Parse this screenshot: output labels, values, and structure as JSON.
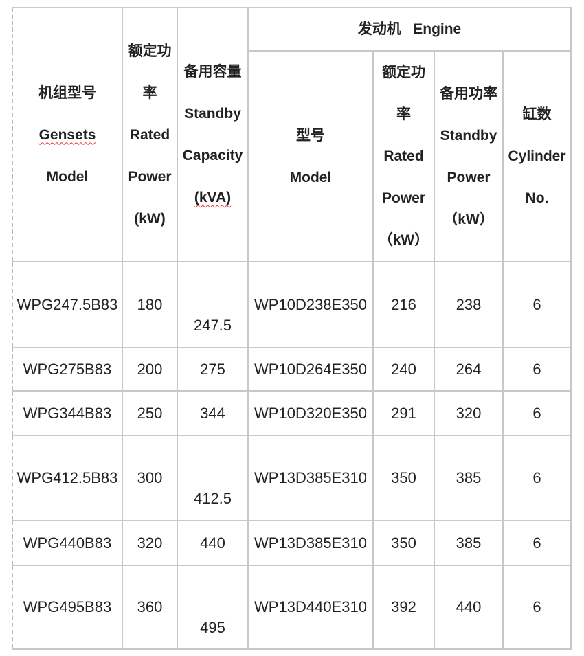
{
  "header": {
    "genset_model": [
      "机组型号",
      "Gensets",
      "Model"
    ],
    "rated_power": [
      "额定功",
      "率",
      "Rated",
      "Power",
      "(kW)"
    ],
    "standby_capacity": [
      "备用容量",
      "Standby",
      "Capacity",
      "(kVA)"
    ],
    "engine": "发动机   Engine",
    "engine_model": [
      "型号",
      "Model"
    ],
    "engine_rated_power": [
      "额定功",
      "率",
      "Rated",
      "Power",
      "（kW）"
    ],
    "engine_standby_power": [
      "备用功率",
      "Standby",
      "Power",
      "（kW）"
    ],
    "cylinders": [
      "缸数",
      "Cylinder",
      "No."
    ]
  },
  "rows": [
    [
      "WPG247.5B83",
      "180",
      "247.5",
      "WP10D238E350",
      "216",
      "238",
      "6"
    ],
    [
      "WPG275B83",
      "200",
      "275",
      "WP10D264E350",
      "240",
      "264",
      "6"
    ],
    [
      "WPG344B83",
      "250",
      "344",
      "WP10D320E350",
      "291",
      "320",
      "6"
    ],
    [
      "WPG412.5B83",
      "300",
      "412.5",
      "WP13D385E310",
      "350",
      "385",
      "6"
    ],
    [
      "WPG440B83",
      "320",
      "440",
      "WP13D385E310",
      "350",
      "385",
      "6"
    ],
    [
      "WPG495B83",
      "360",
      "495",
      "WP13D440E310",
      "392",
      "440",
      "6"
    ]
  ]
}
